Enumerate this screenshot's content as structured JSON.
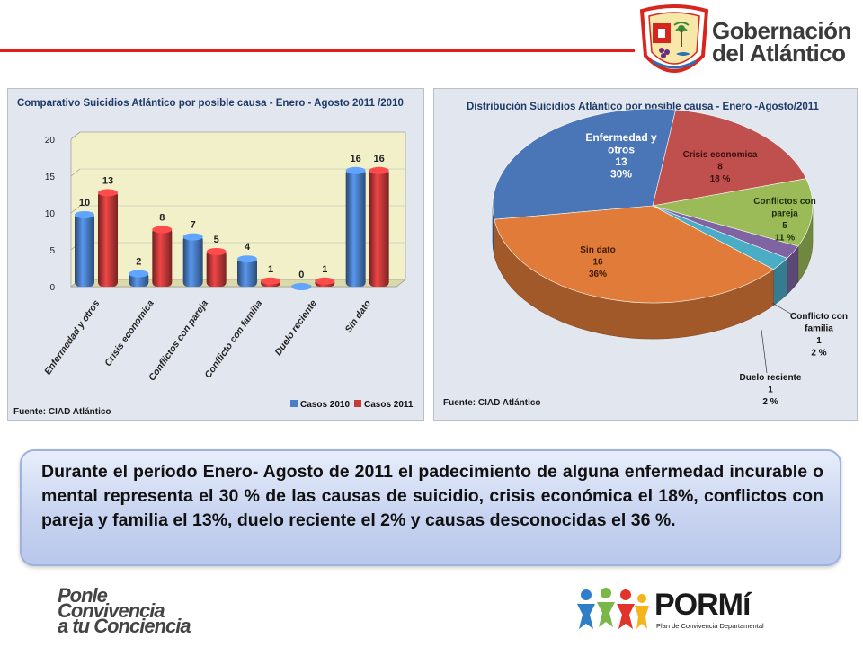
{
  "header": {
    "logo_line1": "Gobernación",
    "logo_line2": "del Atlántico"
  },
  "bar_panel": {
    "title": "Comparativo Suicidios Atlántico  por posible causa - Enero - Agosto 2011 /2010",
    "source": "Fuente: CIAD Atlántico"
  },
  "pie_panel": {
    "title": "Distribución Suicidios Atlántico  por posible causa - Enero -Agosto/2011",
    "source": "Fuente: CIAD Atlántico"
  },
  "callout": {
    "text": "Durante el período Enero- Agosto de 2011  el padecimiento de alguna enfermedad incurable o mental  representa  el 30 % de las causas de suicidio, crisis económica el 18%, conflictos con pareja y familia el 13%, duelo reciente el 2% y causas desconocidas el  36 %."
  },
  "footer": {
    "ponle_line1": "Ponle",
    "ponle_line2": "Convivencia",
    "ponle_line3": "a tu Conciencia",
    "portmi_word": "PORMí",
    "portmi_subtitle": "Plan de Convivencia Departamental"
  },
  "chart_data": [
    {
      "type": "bar",
      "title": "Comparativo Suicidios Atlántico  por posible causa - Enero - Agosto 2011 /2010",
      "categories": [
        "Enfermedad y otros",
        "Crisis economica",
        "Conflictos con pareja",
        "Conflicto con familia",
        "Duelo reciente",
        "Sin dato"
      ],
      "series": [
        {
          "name": "Casos 2010",
          "values": [
            10,
            2,
            7,
            4,
            0,
            16
          ],
          "color": "#4a7fc7"
        },
        {
          "name": "Casos 2011",
          "values": [
            13,
            8,
            5,
            1,
            1,
            16
          ],
          "color": "#c83a3a"
        }
      ],
      "yticks": [
        "0",
        "5",
        "10",
        "15",
        "20"
      ],
      "ylim": [
        0,
        20
      ],
      "legend_position": "bottom-right",
      "source": "Fuente: CIAD Atlántico"
    },
    {
      "type": "pie",
      "title": "Distribución Suicidios Atlántico  por posible causa - Enero -Agosto/2011",
      "slices": [
        {
          "label": "Enfermedad y otros",
          "label_lines": [
            "Enfermedad y",
            "otros"
          ],
          "value": 13,
          "percent": "30%",
          "color": "#4a76b8"
        },
        {
          "label": "Crisis economica",
          "label_lines": [
            "Crisis economica"
          ],
          "value": 8,
          "percent": "18 %",
          "color": "#c0504d"
        },
        {
          "label": "Conflictos con pareja",
          "label_lines": [
            "Conflictos con",
            "pareja"
          ],
          "value": 5,
          "percent": "11 %",
          "color": "#9bbb59"
        },
        {
          "label": "Conflicto con familia",
          "label_lines": [
            "Conflicto con",
            "familia"
          ],
          "value": 1,
          "percent": "2 %",
          "color": "#8064a2"
        },
        {
          "label": "Duelo reciente",
          "label_lines": [
            "Duelo reciente"
          ],
          "value": 1,
          "percent": "2 %",
          "color": "#4bacc6"
        },
        {
          "label": "Sin dato",
          "label_lines": [
            "Sin dato"
          ],
          "value": 16,
          "percent": "36%",
          "color": "#e07b39"
        }
      ],
      "source": "Fuente: CIAD Atlántico"
    }
  ]
}
